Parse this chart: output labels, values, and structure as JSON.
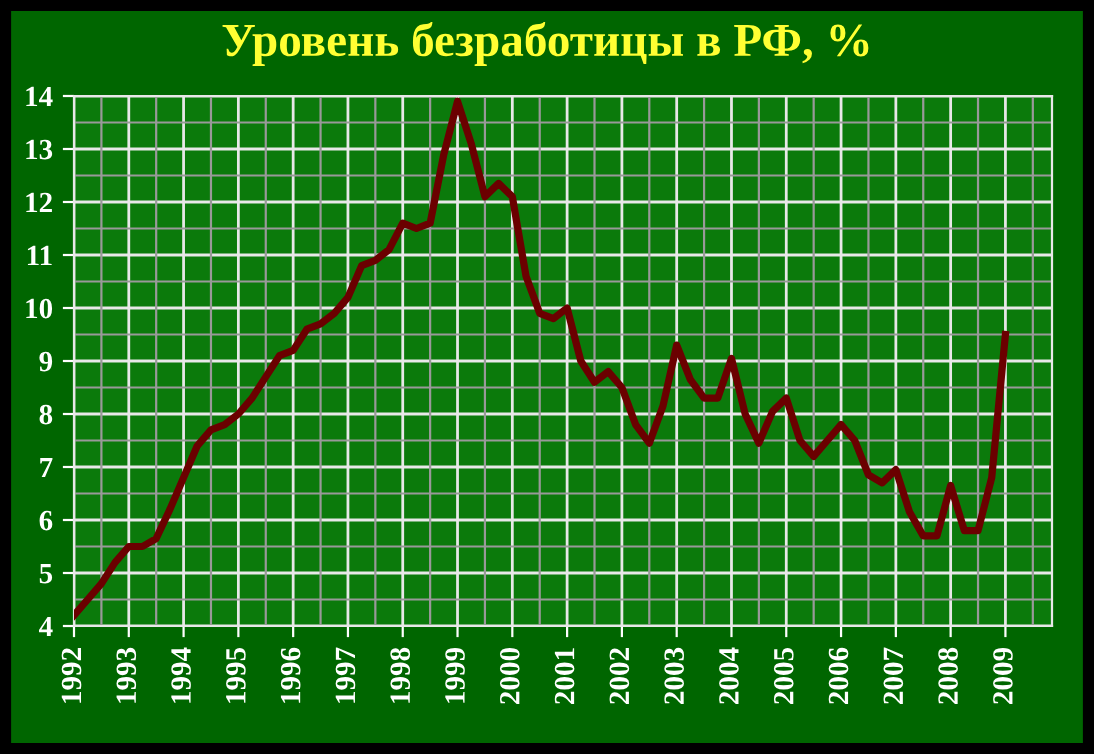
{
  "chart_data": {
    "type": "line",
    "title": "Уровень безработицы в РФ, %",
    "x": [
      1992,
      1992.25,
      1992.5,
      1992.75,
      1993,
      1993.25,
      1993.5,
      1993.75,
      1994,
      1994.25,
      1994.5,
      1994.75,
      1995,
      1995.25,
      1995.5,
      1995.75,
      1996,
      1996.25,
      1996.5,
      1996.75,
      1997,
      1997.25,
      1997.5,
      1997.75,
      1998,
      1998.25,
      1998.5,
      1998.75,
      1999,
      1999.25,
      1999.5,
      1999.75,
      2000,
      2000.25,
      2000.5,
      2000.75,
      2001,
      2001.25,
      2001.5,
      2001.75,
      2002,
      2002.25,
      2002.5,
      2002.75,
      2003,
      2003.25,
      2003.5,
      2003.75,
      2004,
      2004.25,
      2004.5,
      2004.75,
      2005,
      2005.25,
      2005.5,
      2005.75,
      2006,
      2006.25,
      2006.5,
      2006.75,
      2007,
      2007.25,
      2007.5,
      2007.75,
      2008,
      2008.25,
      2008.5,
      2008.75,
      2009
    ],
    "series": [
      {
        "color": "#6b0000",
        "values": [
          4.2,
          4.5,
          4.8,
          5.2,
          5.5,
          5.5,
          5.65,
          6.2,
          6.8,
          7.4,
          7.7,
          7.8,
          8.0,
          8.3,
          8.7,
          9.1,
          9.2,
          9.6,
          9.7,
          9.9,
          10.2,
          10.8,
          10.9,
          11.1,
          11.6,
          11.5,
          11.6,
          12.9,
          13.9,
          13.1,
          12.1,
          12.35,
          12.1,
          10.6,
          9.9,
          9.8,
          10.0,
          9.0,
          8.6,
          8.8,
          8.5,
          7.8,
          7.45,
          8.15,
          9.3,
          8.65,
          8.3,
          8.3,
          9.05,
          8.0,
          7.45,
          8.05,
          8.3,
          7.5,
          7.2,
          7.5,
          7.8,
          7.5,
          6.85,
          6.7,
          6.95,
          6.15,
          5.7,
          5.7,
          6.65,
          5.8,
          5.8,
          6.8,
          9.5
        ]
      }
    ],
    "xlim": [
      1992,
      2009.85
    ],
    "xticks": [
      1992,
      1993,
      1994,
      1995,
      1996,
      1997,
      1998,
      1999,
      2000,
      2001,
      2002,
      2003,
      2004,
      2005,
      2006,
      2007,
      2008,
      2009
    ],
    "ylim": [
      4,
      14
    ],
    "yticks": [
      4,
      5,
      6,
      7,
      8,
      9,
      10,
      11,
      12,
      13,
      14
    ],
    "grid": true,
    "marker": "none",
    "line_style": "solid"
  }
}
